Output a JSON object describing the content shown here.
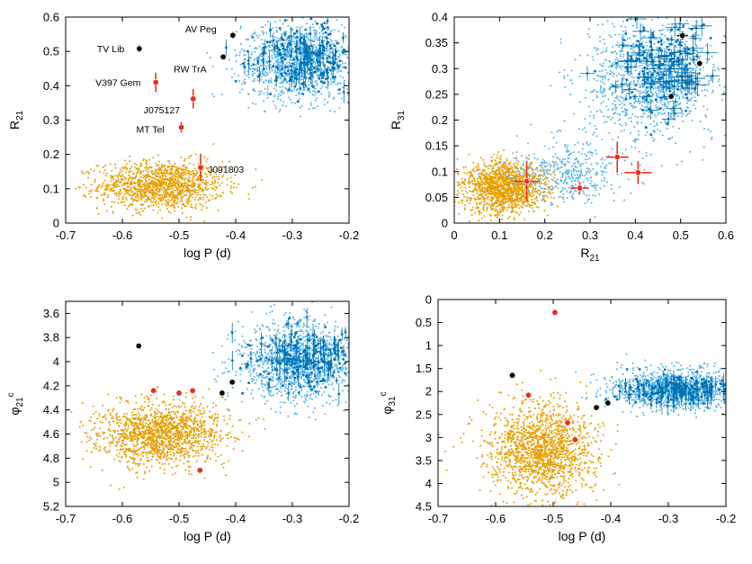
{
  "colors": {
    "orange": "#e69f00",
    "lightblue": "#56b4e9",
    "darkblue": "#0072b2",
    "red": "#e8301c",
    "black": "#000000"
  },
  "chart_data": [
    {
      "type": "scatter",
      "panel": "top-left",
      "xlabel": "log P (d)",
      "ylabel": "R21",
      "ylabel_main": "R",
      "ylabel_sub": "21",
      "xlim": [
        -0.7,
        -0.2
      ],
      "ylim": [
        0,
        0.6
      ],
      "y_inverted": false,
      "xticks": [
        -0.7,
        -0.6,
        -0.5,
        -0.4,
        -0.3,
        -0.2
      ],
      "yticks": [
        0,
        0.1,
        0.2,
        0.3,
        0.4,
        0.5,
        0.6
      ],
      "xtick_labels": [
        "-0.7",
        "-0.6",
        "-0.5",
        "-0.4",
        "-0.3",
        "-0.2"
      ],
      "ytick_labels": [
        "0",
        "0.1",
        "0.2",
        "0.3",
        "0.4",
        "0.5",
        "0.6"
      ],
      "clouds": [
        {
          "color": "orange",
          "center": [
            -0.53,
            0.11
          ],
          "spread": [
            0.055,
            0.035
          ],
          "n": 1300
        },
        {
          "color": "lightblue",
          "center": [
            -0.29,
            0.47
          ],
          "spread": [
            0.05,
            0.055
          ],
          "n": 1300
        },
        {
          "color": "darkblue",
          "center": [
            -0.28,
            0.48
          ],
          "spread": [
            0.045,
            0.045
          ],
          "n": 260
        }
      ],
      "points": [
        {
          "label": "TV Lib",
          "x": -0.57,
          "y": 0.508,
          "color": "black",
          "yerr": 0.01
        },
        {
          "label": "AV Peg",
          "x": -0.405,
          "y": 0.547,
          "color": "black",
          "yerr": 0.01
        },
        {
          "label": "RW TrA",
          "x": -0.422,
          "y": 0.484,
          "color": "black",
          "yerr": 0
        },
        {
          "label": "V397 Gem",
          "x": -0.541,
          "y": 0.41,
          "color": "red",
          "yerr": 0.028
        },
        {
          "label": "J075127",
          "x": -0.475,
          "y": 0.362,
          "color": "red",
          "yerr": 0.028
        },
        {
          "label": "MT Tel",
          "x": -0.496,
          "y": 0.279,
          "color": "red",
          "yerr": 0.015
        },
        {
          "label": "J091803",
          "x": -0.462,
          "y": 0.162,
          "color": "red",
          "yerr": 0.04
        }
      ]
    },
    {
      "type": "scatter",
      "panel": "top-right",
      "xlabel": "R21",
      "xlabel_main": "R",
      "xlabel_sub": "21",
      "ylabel": "R31",
      "ylabel_main": "R",
      "ylabel_sub": "31",
      "xlim": [
        0,
        0.6
      ],
      "ylim": [
        0,
        0.4
      ],
      "y_inverted": false,
      "xticks": [
        0,
        0.1,
        0.2,
        0.3,
        0.4,
        0.5,
        0.6
      ],
      "yticks": [
        0,
        0.05,
        0.1,
        0.15,
        0.2,
        0.25,
        0.3,
        0.35,
        0.4
      ],
      "xtick_labels": [
        "0",
        "0.1",
        "0.2",
        "0.3",
        "0.4",
        "0.5",
        "0.6"
      ],
      "ytick_labels": [
        "0",
        "0.05",
        "0.1",
        "0.15",
        "0.2",
        "0.25",
        "0.3",
        "0.35",
        "0.4"
      ],
      "clouds": [
        {
          "color": "orange",
          "center": [
            0.11,
            0.07
          ],
          "spread": [
            0.045,
            0.025
          ],
          "n": 1400
        },
        {
          "color": "lightblue",
          "center": [
            0.43,
            0.28
          ],
          "spread": [
            0.07,
            0.055
          ],
          "n": 1200
        },
        {
          "color": "lightblue",
          "center": [
            0.25,
            0.1
          ],
          "spread": [
            0.06,
            0.03
          ],
          "n": 400
        },
        {
          "color": "darkblue",
          "center": [
            0.46,
            0.31
          ],
          "spread": [
            0.05,
            0.045
          ],
          "n": 240
        }
      ],
      "points": [
        {
          "x": 0.16,
          "y": 0.081,
          "color": "red",
          "xerr": 0.03,
          "yerr": 0.04
        },
        {
          "x": 0.277,
          "y": 0.068,
          "color": "red",
          "xerr": 0.02,
          "yerr": 0.012
        },
        {
          "x": 0.36,
          "y": 0.128,
          "color": "red",
          "xerr": 0.025,
          "yerr": 0.03
        },
        {
          "x": 0.406,
          "y": 0.098,
          "color": "red",
          "xerr": 0.03,
          "yerr": 0.022
        },
        {
          "x": 0.504,
          "y": 0.364,
          "color": "black",
          "xerr": 0.012,
          "yerr": 0.008
        },
        {
          "x": 0.542,
          "y": 0.31,
          "color": "black",
          "xerr": 0.005,
          "yerr": 0.005
        },
        {
          "x": 0.479,
          "y": 0.246,
          "color": "black",
          "xerr": 0.005,
          "yerr": 0.005
        }
      ]
    },
    {
      "type": "scatter",
      "panel": "bottom-left",
      "xlabel": "log P (d)",
      "ylabel": "φ21c",
      "ylabel_main": "φ",
      "ylabel_sub": "21",
      "ylabel_sup": "c",
      "xlim": [
        -0.7,
        -0.2
      ],
      "ylim": [
        3.5,
        5.2
      ],
      "y_inverted": true,
      "xticks": [
        -0.7,
        -0.6,
        -0.5,
        -0.4,
        -0.3,
        -0.2
      ],
      "yticks": [
        3.6,
        3.8,
        4.0,
        4.2,
        4.4,
        4.6,
        4.8,
        5.0,
        5.2
      ],
      "xtick_labels": [
        "-0.7",
        "-0.6",
        "-0.5",
        "-0.4",
        "-0.3",
        "-0.2"
      ],
      "ytick_labels": [
        "3.6",
        "3.8",
        "4",
        "4.2",
        "4.4",
        "4.6",
        "4.8",
        "5",
        "5.2"
      ],
      "clouds": [
        {
          "color": "orange",
          "center": [
            -0.53,
            4.6
          ],
          "spread": [
            0.055,
            0.13
          ],
          "n": 1500
        },
        {
          "color": "lightblue",
          "center": [
            -0.29,
            4.0
          ],
          "spread": [
            0.05,
            0.17
          ],
          "n": 1400
        },
        {
          "color": "darkblue",
          "center": [
            -0.28,
            3.98
          ],
          "spread": [
            0.045,
            0.12
          ],
          "n": 260
        }
      ],
      "points": [
        {
          "x": -0.571,
          "y": 3.87,
          "color": "black"
        },
        {
          "x": -0.424,
          "y": 4.26,
          "color": "black"
        },
        {
          "x": -0.406,
          "y": 4.17,
          "color": "black"
        },
        {
          "x": -0.545,
          "y": 4.24,
          "color": "red"
        },
        {
          "x": -0.5,
          "y": 4.26,
          "color": "red"
        },
        {
          "x": -0.476,
          "y": 4.24,
          "color": "red"
        },
        {
          "x": -0.463,
          "y": 4.9,
          "color": "red"
        }
      ]
    },
    {
      "type": "scatter",
      "panel": "bottom-right",
      "xlabel": "log P (d)",
      "ylabel": "φ31c",
      "ylabel_main": "φ",
      "ylabel_sub": "31",
      "ylabel_sup": "c",
      "xlim": [
        -0.7,
        -0.2
      ],
      "ylim": [
        0,
        4.5
      ],
      "y_inverted": true,
      "xticks": [
        -0.7,
        -0.6,
        -0.5,
        -0.4,
        -0.3,
        -0.2
      ],
      "yticks": [
        0,
        0.5,
        1,
        1.5,
        2,
        2.5,
        3,
        3.5,
        4,
        4.5
      ],
      "xtick_labels": [
        "-0.7",
        "-0.6",
        "-0.5",
        "-0.4",
        "-0.3",
        "-0.2"
      ],
      "ytick_labels": [
        "0",
        "0.5",
        "1",
        "1.5",
        "2",
        "2.5",
        "3",
        "3.5",
        "4",
        "4.5"
      ],
      "clouds": [
        {
          "color": "orange",
          "center": [
            -0.52,
            3.3
          ],
          "spread": [
            0.045,
            0.5
          ],
          "n": 1600
        },
        {
          "color": "lightblue",
          "center": [
            -0.29,
            1.95
          ],
          "spread": [
            0.055,
            0.22
          ],
          "n": 1200
        },
        {
          "color": "darkblue",
          "center": [
            -0.28,
            1.95
          ],
          "spread": [
            0.05,
            0.15
          ],
          "n": 250
        }
      ],
      "points": [
        {
          "x": -0.571,
          "y": 1.65,
          "color": "black"
        },
        {
          "x": -0.425,
          "y": 2.35,
          "color": "black"
        },
        {
          "x": -0.405,
          "y": 2.25,
          "color": "black"
        },
        {
          "x": -0.497,
          "y": 0.28,
          "color": "red"
        },
        {
          "x": -0.543,
          "y": 2.08,
          "color": "red"
        },
        {
          "x": -0.475,
          "y": 2.68,
          "color": "red"
        },
        {
          "x": -0.462,
          "y": 3.05,
          "color": "red"
        }
      ]
    }
  ]
}
